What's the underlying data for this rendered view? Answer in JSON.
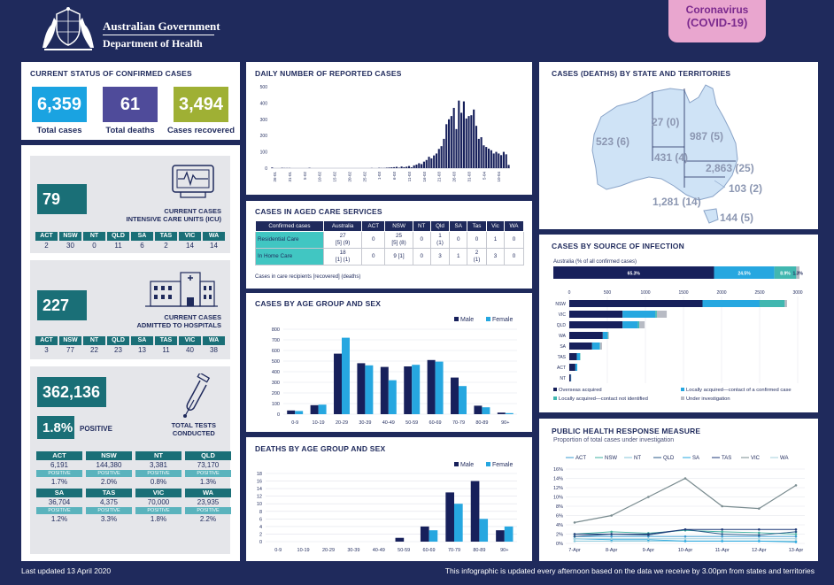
{
  "header": {
    "gov_line1": "Australian Government",
    "gov_line2": "Department of Health",
    "badge_line1": "Coronavirus",
    "badge_line2": "(COVID-19)"
  },
  "colors": {
    "navy": "#1f2a5c",
    "blue": "#1aa3e1",
    "purple": "#4f4b9a",
    "olive": "#9fb034",
    "teal": "#1a6f77",
    "male": "#17205b",
    "female": "#26a7e0"
  },
  "status": {
    "title": "CURRENT STATUS OF CONFIRMED CASES",
    "total_cases": "6,359",
    "total_cases_label": "Total cases",
    "total_deaths": "61",
    "total_deaths_label": "Total deaths",
    "recovered": "3,494",
    "recovered_label": "Cases recovered"
  },
  "icu": {
    "value": "79",
    "label_line1": "CURRENT CASES",
    "label_line2": "INTENSIVE CARE UNITS (ICU)",
    "states": [
      "ACT",
      "NSW",
      "NT",
      "QLD",
      "SA",
      "TAS",
      "VIC",
      "WA"
    ],
    "values": [
      "2",
      "30",
      "0",
      "11",
      "6",
      "2",
      "14",
      "14"
    ]
  },
  "hosp": {
    "value": "227",
    "label_line1": "CURRENT CASES",
    "label_line2": "ADMITTED TO HOSPITALS",
    "states": [
      "ACT",
      "NSW",
      "NT",
      "QLD",
      "SA",
      "TAS",
      "VIC",
      "WA"
    ],
    "values": [
      "3",
      "77",
      "22",
      "23",
      "13",
      "11",
      "40",
      "38"
    ]
  },
  "tests": {
    "value": "362,136",
    "positive_rate": "1.8%",
    "positive_word": "POSITIVE",
    "label_line1": "TOTAL TESTS",
    "label_line2": "CONDUCTED",
    "positive_tag": "POSITIVE",
    "rows": [
      [
        {
          "s": "ACT",
          "v": "6,191",
          "p": "1.7%"
        },
        {
          "s": "NSW",
          "v": "144,380",
          "p": "2.0%"
        },
        {
          "s": "NT",
          "v": "3,381",
          "p": "0.8%"
        },
        {
          "s": "QLD",
          "v": "73,170",
          "p": "1.3%"
        }
      ],
      [
        {
          "s": "SA",
          "v": "36,704",
          "p": "1.2%"
        },
        {
          "s": "TAS",
          "v": "4,375",
          "p": "3.3%"
        },
        {
          "s": "VIC",
          "v": "70,000",
          "p": "1.8%"
        },
        {
          "s": "WA",
          "v": "23,935",
          "p": "2.2%"
        }
      ]
    ]
  },
  "aged": {
    "title": "CASES IN AGED CARE SERVICES",
    "headers": [
      "Confirmed cases",
      "Australia",
      "ACT",
      "NSW",
      "NT",
      "Qld",
      "SA",
      "Tas",
      "Vic",
      "WA"
    ],
    "rows": [
      {
        "label": "Residential Care",
        "cells": [
          "27\n[5] (9)",
          "0",
          "25\n[5] (8)",
          "0",
          "1\n(1)",
          "0",
          "0",
          "1",
          "0"
        ]
      },
      {
        "label": "In Home Care",
        "cells": [
          "18\n[1] (1)",
          "0",
          "9 [1]",
          "0",
          "3",
          "1",
          "2\n(1)",
          "3",
          "0"
        ]
      }
    ],
    "note": "Cases in care recipients [recovered] (deaths)"
  },
  "map": {
    "title": "CASES (DEATHS) BY STATE AND TERRITORIES",
    "labels": {
      "WA": "523 (6)",
      "NT": "27 (0)",
      "QLD": "987 (5)",
      "SA": "431 (4)",
      "NSW": "2,863 (25)",
      "ACT": "103 (2)",
      "VIC": "1,281 (14)",
      "TAS": "144 (5)"
    }
  },
  "footer": {
    "left": "Last updated 13 April 2020",
    "right": "This infographic is updated every afternoon based on the data we receive by 3.00pm from states and territories"
  },
  "chart_data": [
    {
      "id": "daily",
      "type": "bar",
      "title": "DAILY NUMBER OF REPORTED CASES",
      "ylim": [
        0,
        500
      ],
      "yticks": [
        0,
        100,
        200,
        300,
        400,
        500
      ],
      "xticks": [
        "26-01",
        "31-01",
        "5-02",
        "10-02",
        "15-02",
        "20-02",
        "25-02",
        "1-03",
        "6-03",
        "11-03",
        "16-03",
        "21-03",
        "26-03",
        "31-03",
        "5-04",
        "10-04"
      ],
      "values": [
        4,
        0,
        0,
        0,
        2,
        1,
        1,
        1,
        0,
        0,
        0,
        0,
        0,
        0,
        0,
        2,
        0,
        0,
        0,
        0,
        0,
        0,
        0,
        0,
        0,
        0,
        0,
        0,
        0,
        0,
        0,
        0,
        0,
        0,
        0,
        0,
        0,
        0,
        0,
        0,
        1,
        0,
        0,
        2,
        1,
        1,
        3,
        4,
        5,
        6,
        8,
        3,
        10,
        6,
        9,
        13,
        5,
        17,
        22,
        30,
        25,
        40,
        50,
        70,
        60,
        78,
        90,
        118,
        135,
        180,
        270,
        300,
        320,
        370,
        240,
        415,
        340,
        410,
        305,
        320,
        325,
        360,
        260,
        180,
        190,
        140,
        130,
        120,
        110,
        90,
        100,
        90,
        80,
        100,
        85,
        20
      ],
      "grid": false
    },
    {
      "id": "age",
      "type": "bar",
      "title": "CASES BY AGE GROUP AND SEX",
      "categories": [
        "0-9",
        "10-19",
        "20-29",
        "30-39",
        "40-49",
        "50-59",
        "60-69",
        "70-79",
        "80-89",
        "90+"
      ],
      "series": [
        {
          "name": "Male",
          "values": [
            35,
            85,
            570,
            480,
            445,
            450,
            510,
            345,
            80,
            15
          ]
        },
        {
          "name": "Female",
          "values": [
            30,
            90,
            720,
            460,
            320,
            465,
            495,
            265,
            65,
            10
          ]
        }
      ],
      "ylim": [
        0,
        800
      ],
      "yticks": [
        0,
        100,
        200,
        300,
        400,
        500,
        600,
        700,
        800
      ],
      "grid": true
    },
    {
      "id": "deaths",
      "type": "bar",
      "title": "DEATHS BY AGE GROUP AND SEX",
      "categories": [
        "0-9",
        "10-19",
        "20-29",
        "30-39",
        "40-49",
        "50-59",
        "60-69",
        "70-79",
        "80-89",
        "90+"
      ],
      "series": [
        {
          "name": "Male",
          "values": [
            0,
            0,
            0,
            0,
            0,
            1,
            4,
            13,
            16,
            3
          ]
        },
        {
          "name": "Female",
          "values": [
            0,
            0,
            0,
            0,
            0,
            0,
            3,
            10,
            6,
            4
          ]
        }
      ],
      "ylim": [
        0,
        18
      ],
      "yticks": [
        0,
        2,
        4,
        6,
        8,
        10,
        12,
        14,
        16,
        18
      ],
      "grid": true
    },
    {
      "id": "source",
      "type": "bar",
      "title": "CASES BY SOURCE OF INFECTION",
      "subtitle": "Australia (% of all confirmed cases)",
      "summary": [
        {
          "name": "Overseas acquired",
          "pct": 65.3,
          "label": "65.3%"
        },
        {
          "name": "Locally acquired—contact of a confirmed case",
          "pct": 24.5,
          "label": "24.5%"
        },
        {
          "name": "Locally acquired—contact not identified",
          "pct": 8.9,
          "label": "8.9%"
        },
        {
          "name": "Under investigation",
          "pct": 1.3,
          "label": "1.3%"
        }
      ],
      "categories": [
        "NSW",
        "VIC",
        "QLD",
        "WA",
        "SA",
        "TAS",
        "ACT",
        "NT"
      ],
      "series": [
        {
          "name": "Overseas acquired",
          "values": [
            1750,
            700,
            700,
            440,
            300,
            100,
            80,
            20
          ]
        },
        {
          "name": "Locally acquired—contact of a confirmed case",
          "values": [
            750,
            430,
            200,
            60,
            100,
            40,
            25,
            5
          ]
        },
        {
          "name": "Locally acquired—contact not identified",
          "values": [
            330,
            20,
            20,
            10,
            5,
            5,
            0,
            0
          ]
        },
        {
          "name": "Under investigation",
          "values": [
            30,
            130,
            70,
            10,
            25,
            0,
            0,
            2
          ]
        }
      ],
      "xlim": [
        0,
        3000
      ],
      "xticks": [
        0,
        500,
        1000,
        1500,
        2000,
        2500,
        3000
      ],
      "legend": "bottom"
    },
    {
      "id": "phrm",
      "type": "line",
      "title": "PUBLIC HEALTH RESPONSE MEASURE",
      "subtitle": "Proportion of total cases under investigation",
      "x": [
        "7-Apr",
        "8-Apr",
        "9-Apr",
        "10-Apr",
        "11-Apr",
        "12-Apr",
        "13-Apr"
      ],
      "series": [
        {
          "name": "ACT",
          "values": [
            1.5,
            1.5,
            1.5,
            1.5,
            1.5,
            1.5,
            1.5
          ]
        },
        {
          "name": "NSW",
          "values": [
            2.0,
            2.5,
            2.2,
            2.8,
            2.5,
            2.3,
            2.0
          ]
        },
        {
          "name": "NT",
          "values": [
            0.5,
            0.5,
            0.5,
            0.5,
            0.5,
            0.5,
            0.5
          ]
        },
        {
          "name": "QLD",
          "values": [
            1.5,
            2.0,
            1.8,
            3.0,
            2.0,
            1.8,
            2.5
          ]
        },
        {
          "name": "SA",
          "values": [
            1.0,
            0.8,
            0.8,
            0.5,
            0.5,
            0.5,
            0.3
          ]
        },
        {
          "name": "TAS",
          "values": [
            2.0,
            2.0,
            2.0,
            3.0,
            3.0,
            3.0,
            3.0
          ]
        },
        {
          "name": "VIC",
          "values": [
            4.5,
            6.0,
            10.0,
            14.0,
            8.0,
            7.5,
            12.5
          ]
        },
        {
          "name": "WA",
          "values": [
            1.0,
            1.0,
            1.0,
            1.0,
            1.0,
            1.0,
            1.0
          ]
        }
      ],
      "ylim": [
        0,
        16
      ],
      "yticks": [
        "0%",
        "2%",
        "4%",
        "6%",
        "8%",
        "10%",
        "12%",
        "14%",
        "16%"
      ],
      "legend": "top",
      "grid": true
    }
  ]
}
